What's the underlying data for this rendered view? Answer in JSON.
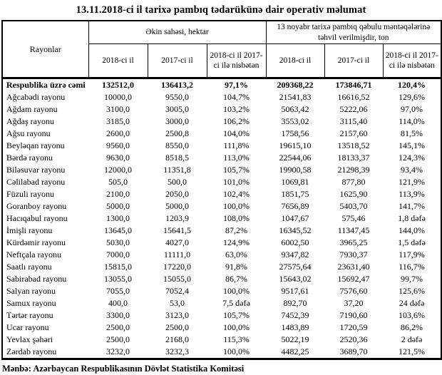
{
  "page": {
    "title": "13.11.2018-ci il tarixə pambıq tədarükünə dair operativ məlumat",
    "source_note": "Mənbə: Azərbaycan Respublikasının Dövlət Statistika Komitəsi"
  },
  "table": {
    "headers": {
      "rayonlar": "Rayonlar",
      "group_sown_area": "Əkin sahəsi, hektar",
      "group_delivered": "13 noyabr tarixə pambıq qəbulu məntəqələrinə təhvil verilmişdir, ton",
      "sub": [
        "2018-ci il",
        "2017-ci il",
        "2018-ci il 2017-ci ilə nisbətən",
        "2018-ci il",
        "2017-ci il",
        "2018-ci il 2017-ci ilə nisbətən"
      ]
    },
    "rows": [
      {
        "bold": true,
        "name": "Respublika üzrə cəmi",
        "c1": "132512,0",
        "c2": "136413,2",
        "c3": "97,1%",
        "c4": "209368,22",
        "c5": "173846,71",
        "c6": "120,4%"
      },
      {
        "bold": false,
        "name": "Ağcabədi rayonu",
        "c1": "10000,0",
        "c2": "9550,0",
        "c3": "104,7%",
        "c4": "21541,83",
        "c5": "16616,52",
        "c6": "129,6%"
      },
      {
        "bold": false,
        "name": "Ağdam rayonu",
        "c1": "3100,0",
        "c2": "3005,0",
        "c3": "103,2%",
        "c4": "5063,42",
        "c5": "5222,06",
        "c6": "97,0%"
      },
      {
        "bold": false,
        "name": "Ağdaş rayonu",
        "c1": "3185,0",
        "c2": "3000,0",
        "c3": "106,2%",
        "c4": "3553,02",
        "c5": "3115,40",
        "c6": "114,0%"
      },
      {
        "bold": false,
        "name": "Ağsu rayonu",
        "c1": "2600,0",
        "c2": "2500,8",
        "c3": "104,0%",
        "c4": "1758,56",
        "c5": "2157,60",
        "c6": "81,5%"
      },
      {
        "bold": false,
        "name": "Beyləqan rayonu",
        "c1": "9560,0",
        "c2": "8550,0",
        "c3": "111,8%",
        "c4": "19615,10",
        "c5": "13518,52",
        "c6": "145,1%"
      },
      {
        "bold": false,
        "name": "Bərdə rayonu",
        "c1": "9630,0",
        "c2": "8518,5",
        "c3": "113,0%",
        "c4": "22544,06",
        "c5": "18133,37",
        "c6": "124,3%"
      },
      {
        "bold": false,
        "name": "Biləsuvar rayonu",
        "c1": "12000,0",
        "c2": "11351,8",
        "c3": "105,7%",
        "c4": "19900,58",
        "c5": "21298,39",
        "c6": "93,4%"
      },
      {
        "bold": false,
        "name": "Cəlilabad rayonu",
        "c1": "505,0",
        "c2": "500,0",
        "c3": "101,0%",
        "c4": "1069,81",
        "c5": "877,80",
        "c6": "121,9%"
      },
      {
        "bold": false,
        "name": "Füzuli rayonu",
        "c1": "2100,0",
        "c2": "2050,0",
        "c3": "102,4%",
        "c4": "1851,75",
        "c5": "1625,90",
        "c6": "113,9%"
      },
      {
        "bold": false,
        "name": "Goranboy rayonu",
        "c1": "5000,0",
        "c2": "5000,0",
        "c3": "100,0%",
        "c4": "7656,89",
        "c5": "5403,70",
        "c6": "141,7%"
      },
      {
        "bold": false,
        "name": "Hacıqabul rayonu",
        "c1": "1300,0",
        "c2": "1203,9",
        "c3": "108,0%",
        "c4": "1047,67",
        "c5": "575,46",
        "c6": "1,8 dəfə"
      },
      {
        "bold": false,
        "name": "İmişli rayonu",
        "c1": "13645,0",
        "c2": "15641,5",
        "c3": "87,2%",
        "c4": "16345,52",
        "c5": "11347,45",
        "c6": "144,0%"
      },
      {
        "bold": false,
        "name": "Kürdəmir rayonu",
        "c1": "5030,0",
        "c2": "4027,0",
        "c3": "124,9%",
        "c4": "6002,50",
        "c5": "3965,25",
        "c6": "1,5 dəfə"
      },
      {
        "bold": false,
        "name": "Neftçala rayonu",
        "c1": "7000,0",
        "c2": "11111,0",
        "c3": "63,0%",
        "c4": "9347,82",
        "c5": "7930,37",
        "c6": "117,9%"
      },
      {
        "bold": false,
        "name": "Saatlı rayonu",
        "c1": "15815,0",
        "c2": "17220,0",
        "c3": "91,8%",
        "c4": "27575,64",
        "c5": "23631,40",
        "c6": "116,7%"
      },
      {
        "bold": false,
        "name": "Sabirabad rayonu",
        "c1": "13055,0",
        "c2": "15055,0",
        "c3": "86,7%",
        "c4": "15643,02",
        "c5": "15692,47",
        "c6": "99,7%"
      },
      {
        "bold": false,
        "name": "Salyan rayonu",
        "c1": "7055,0",
        "c2": "7052,4",
        "c3": "100,0%",
        "c4": "9517,61",
        "c5": "7576,60",
        "c6": "125,6%"
      },
      {
        "bold": false,
        "name": "Samux rayonu",
        "c1": "400,0",
        "c2": "53,0",
        "c3": "7,5 dəfə",
        "c4": "892,70",
        "c5": "37,20",
        "c6": "24 dəfə"
      },
      {
        "bold": false,
        "name": "Tərtər rayonu",
        "c1": "3300,0",
        "c2": "3123,0",
        "c3": "105,7%",
        "c4": "7452,39",
        "c5": "7190,60",
        "c6": "103,6%"
      },
      {
        "bold": false,
        "name": "Ucar rayonu",
        "c1": "2500,0",
        "c2": "2500,0",
        "c3": "100,0%",
        "c4": "1483,89",
        "c5": "1720,59",
        "c6": "86,2%"
      },
      {
        "bold": false,
        "name": "Yevlax şəhəri",
        "c1": "2500,0",
        "c2": "2168,0",
        "c3": "115,3%",
        "c4": "5022,19",
        "c5": "2520,36",
        "c6": "2 dəfə"
      },
      {
        "bold": false,
        "name": "Zərdab rayonu",
        "c1": "3232,0",
        "c2": "3232,3",
        "c3": "100,0%",
        "c4": "4482,25",
        "c5": "3689,70",
        "c6": "121,5%"
      }
    ]
  }
}
